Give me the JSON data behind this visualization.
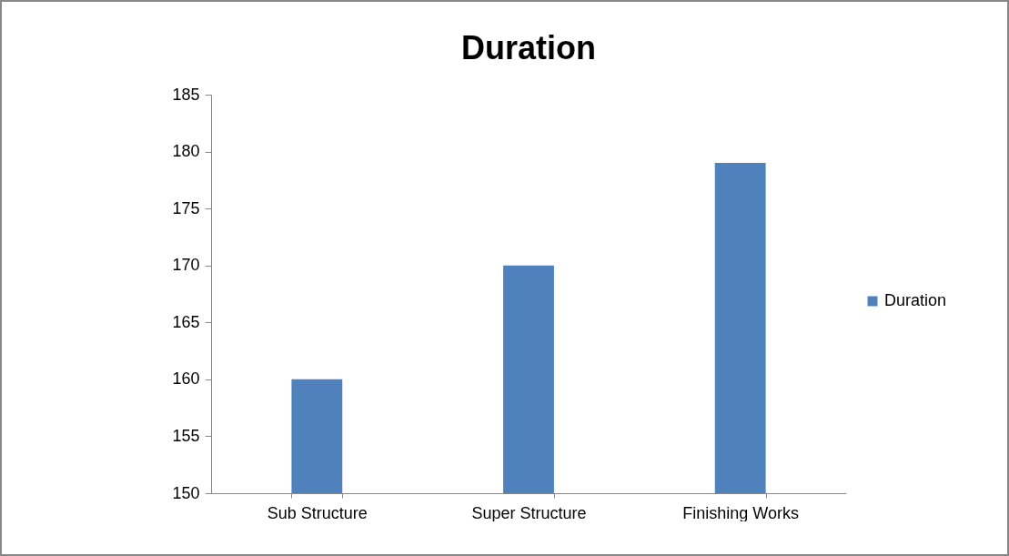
{
  "chart_data": {
    "type": "bar",
    "title": "Duration",
    "categories": [
      "Sub Structure",
      "Super Structure",
      "Finishing Works"
    ],
    "series": [
      {
        "name": "Duration",
        "color": "#4f81bd",
        "values": [
          160,
          170,
          179
        ]
      }
    ],
    "ylim": [
      150,
      185
    ],
    "yticks": [
      150,
      155,
      160,
      165,
      170,
      175,
      180,
      185
    ],
    "grid": false,
    "legend": "right"
  }
}
